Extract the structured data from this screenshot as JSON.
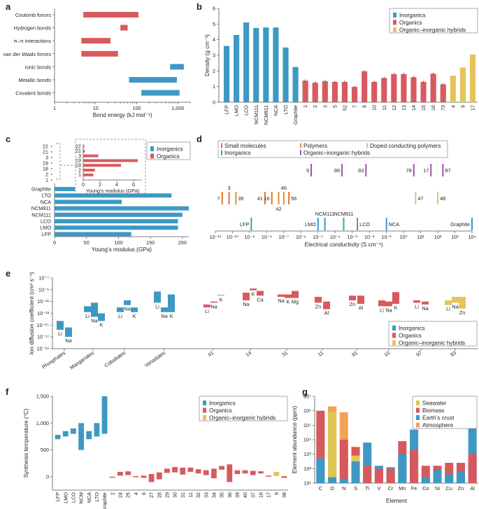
{
  "colors": {
    "inorganic": "#3d99c4",
    "organic": "#d85a5e",
    "hybrid": "#e6c45a",
    "small_molecule": "#e2732e",
    "polymer": "#e0922f",
    "doped": "#e1c27c",
    "hybrid_purple": "#a94fb3",
    "seawater": "#e0c653",
    "biomass": "#d6595d",
    "crust": "#3d99c4",
    "atmosphere": "#f2a15b"
  },
  "chart_data": [
    {
      "panel": "a",
      "type": "range-bar",
      "xlabel": "Bond energy (kJ mol⁻¹)",
      "xscale": "log",
      "xlim": [
        1,
        2000
      ],
      "xticks": [
        "1",
        "10",
        "100",
        "1,000"
      ],
      "bars": [
        {
          "label": "Coulomb forces",
          "lo": 5,
          "hi": 110,
          "group": "organic"
        },
        {
          "label": "Hydrogen bonds",
          "lo": 40,
          "hi": 60,
          "group": "organic"
        },
        {
          "label": "π–π interactions",
          "lo": 4.5,
          "hi": 23,
          "group": "organic"
        },
        {
          "label": "van der Waals forces",
          "lo": 4.5,
          "hi": 35,
          "group": "organic"
        },
        {
          "label": "Ionic bonds",
          "lo": 650,
          "hi": 1400,
          "group": "inorganic"
        },
        {
          "label": "Metallic bonds",
          "lo": 65,
          "hi": 950,
          "group": "inorganic"
        },
        {
          "label": "Covalent bonds",
          "lo": 130,
          "hi": 1100,
          "group": "inorganic"
        }
      ]
    },
    {
      "panel": "b",
      "type": "bar",
      "ylabel": "Density (g cm⁻³)",
      "ylim": [
        0,
        6
      ],
      "yticks": [
        "0",
        "1",
        "2",
        "3",
        "4",
        "5",
        "6"
      ],
      "legend": [
        "Inorganics",
        "Organics",
        "Organic–inorganic hybrids"
      ],
      "categories": [
        "LFP",
        "LMO",
        "LCO",
        "NCM111",
        "NCM811",
        "NCA",
        "LTO",
        "Graphite",
        "1",
        "2",
        "3",
        "5",
        "52",
        "7",
        "8",
        "10",
        "11",
        "12",
        "13",
        "14",
        "15",
        "16",
        "73",
        "4",
        "9",
        "17"
      ],
      "values": [
        3.6,
        4.3,
        5.1,
        4.75,
        4.78,
        4.78,
        3.5,
        2.25,
        1.38,
        1.25,
        1.35,
        1.3,
        1.3,
        0.98,
        1.98,
        1.3,
        1.55,
        1.8,
        1.8,
        1.6,
        1.3,
        1.82,
        1.15,
        1.7,
        2.22,
        3.05
      ],
      "groups": [
        "inorganic",
        "inorganic",
        "inorganic",
        "inorganic",
        "inorganic",
        "inorganic",
        "inorganic",
        "inorganic",
        "organic",
        "organic",
        "organic",
        "organic",
        "organic",
        "organic",
        "organic",
        "organic",
        "organic",
        "organic",
        "organic",
        "organic",
        "organic",
        "organic",
        "organic",
        "hybrid",
        "hybrid",
        "hybrid"
      ]
    },
    {
      "panel": "c",
      "type": "hbar",
      "xlabel": "Young’s modulus (GPa)",
      "xlim": [
        0,
        210
      ],
      "xticks": [
        "0",
        "50",
        "100",
        "150",
        "200"
      ],
      "legend": [
        "Inorganics",
        "Organics"
      ],
      "categories": [
        "Graphite",
        "LTO",
        "NCA",
        "NCM811",
        "NCM111",
        "LCO",
        "LMO",
        "LFP"
      ],
      "values": [
        32,
        183,
        105,
        210,
        200,
        193,
        193,
        120
      ],
      "inset": {
        "xlabel": "Young’s modulus (GPa)",
        "xlim": [
          0,
          7
        ],
        "xticks": [
          "0",
          "2",
          "4",
          "6"
        ],
        "categories": [
          "22",
          "21",
          "3",
          "19",
          "18",
          "2",
          "1"
        ],
        "values": [
          0.12,
          0.2,
          1.8,
          6.5,
          4.5,
          1.4,
          1.2
        ]
      },
      "outer_labels": [
        "22",
        "21",
        "3",
        "19",
        "18",
        "2",
        "1"
      ]
    },
    {
      "panel": "d",
      "type": "scatter-lines",
      "xlabel": "Electrical conductivity (S cm⁻¹)",
      "xscale": "log",
      "xlim": [
        -11,
        4
      ],
      "legend": [
        "Small molecules",
        "Polymers",
        "Doped conducting polymers",
        "Inorganics",
        "Organic–inorganic hybrids"
      ],
      "points": [
        {
          "label": "9",
          "log": -5.4,
          "row": 0,
          "group": "hybrid_purple",
          "side": "left"
        },
        {
          "label": "86",
          "log": -3.6,
          "row": 0,
          "group": "hybrid_purple",
          "side": "left"
        },
        {
          "label": "83",
          "log": -2.2,
          "row": 0,
          "group": "hybrid_purple",
          "side": "left"
        },
        {
          "label": "78",
          "log": 0.6,
          "row": 0,
          "group": "hybrid_purple",
          "side": "left"
        },
        {
          "label": "17",
          "log": 1.6,
          "row": 0,
          "group": "hybrid_purple",
          "side": "left"
        },
        {
          "label": "87",
          "log": 2.3,
          "row": 0,
          "group": "hybrid_purple",
          "side": "right"
        },
        {
          "label": "7",
          "log": -10.6,
          "row": 1,
          "group": "small_molecule",
          "side": "left"
        },
        {
          "label": "3",
          "log": -10.2,
          "row": 1,
          "group": "small_molecule",
          "side": "top"
        },
        {
          "label": "39",
          "log": -9.8,
          "row": 1,
          "group": "polymer",
          "side": "right"
        },
        {
          "label": "41",
          "log": -8.1,
          "row": 1,
          "group": "small_molecule",
          "side": "left"
        },
        {
          "label": "16",
          "log": -7.7,
          "row": 1,
          "group": "small_molecule",
          "side": "left"
        },
        {
          "label": "42",
          "log": -7.3,
          "row": 1,
          "group": "polymer",
          "side": "bottom"
        },
        {
          "label": "46",
          "log": -7.0,
          "row": 1,
          "group": "polymer",
          "side": "top"
        },
        {
          "label": "56",
          "log": -6.7,
          "row": 1,
          "group": "small_molecule",
          "side": "right"
        },
        {
          "label": "47",
          "log": 0.7,
          "row": 1,
          "group": "doped",
          "side": "right"
        },
        {
          "label": "48",
          "log": 2.0,
          "row": 1,
          "group": "doped",
          "side": "right"
        },
        {
          "label": "LFP",
          "log": -8.9,
          "row": 2,
          "group": "inorganic",
          "side": "left"
        },
        {
          "label": "LMO",
          "log": -5.0,
          "row": 2,
          "group": "inorganic",
          "side": "left"
        },
        {
          "label": "NCM111",
          "log": -4.6,
          "row": 2,
          "group": "inorganic",
          "side": "top"
        },
        {
          "label": "NCM811",
          "log": -3.5,
          "row": 2,
          "group": "inorganic",
          "side": "top"
        },
        {
          "label": "LCO",
          "log": -2.7,
          "row": 2,
          "group": "inorganic",
          "side": "right"
        },
        {
          "label": "NCA",
          "log": -1.0,
          "row": 2,
          "group": "inorganic",
          "side": "right"
        },
        {
          "label": "Graphite",
          "log": 4.0,
          "row": 2,
          "group": "inorganic",
          "side": "left"
        }
      ]
    },
    {
      "panel": "e",
      "type": "floating-bar",
      "ylabel": "Ion diffusion coefficient (cm² s⁻¹)",
      "ylim": [
        -19,
        -7
      ],
      "legend": [
        "Inorganics",
        "Organics",
        "Organic–inorganic hybrids"
      ],
      "xcats": [
        "Phosphates",
        "Manganates",
        "Cobaltates",
        "Vanadates",
        "41",
        "14",
        "31",
        "11",
        "81",
        "10",
        "97",
        "83"
      ],
      "bars": [
        {
          "cat": 0,
          "dx": -6,
          "lo": -15.8,
          "hi": -14.3,
          "label": "Li",
          "group": "inorganic"
        },
        {
          "cat": 0,
          "dx": 6,
          "lo": -17.0,
          "hi": -15.4,
          "label": "Na",
          "group": "inorganic"
        },
        {
          "cat": 1,
          "dx": -8,
          "lo": -12.8,
          "hi": -11.8,
          "label": "Li",
          "group": "inorganic"
        },
        {
          "cat": 1,
          "dx": 2,
          "lo": -13.6,
          "hi": -11.2,
          "label": "Na",
          "group": "inorganic"
        },
        {
          "cat": 1,
          "dx": 12,
          "lo": -14.3,
          "hi": -13.0,
          "label": "K",
          "group": "inorganic"
        },
        {
          "cat": 2,
          "dx": -6,
          "lo": -12.8,
          "hi": -12.0,
          "label": "Li",
          "group": "inorganic"
        },
        {
          "cat": 2,
          "dx": 4,
          "lo": -11.6,
          "hi": -10.8,
          "label": "Na",
          "group": "inorganic"
        },
        {
          "cat": 2,
          "dx": 14,
          "lo": -12.8,
          "hi": -12.0,
          "label": "K",
          "group": "inorganic"
        },
        {
          "cat": 3,
          "dx": -10,
          "lo": -11.2,
          "hi": -9.3,
          "label": "Li",
          "group": "inorganic"
        },
        {
          "cat": 3,
          "dx": 0,
          "lo": -12.8,
          "hi": -12.0,
          "label": "Na",
          "group": "inorganic"
        },
        {
          "cat": 3,
          "dx": 10,
          "lo": -12.8,
          "hi": -9.8,
          "label": "K",
          "group": "inorganic"
        },
        {
          "cat": 4,
          "dx": -8,
          "lo": -12.0,
          "hi": -11.5,
          "label": "Li",
          "group": "organic"
        },
        {
          "cat": 4,
          "dx": 2,
          "lo": -11.2,
          "hi": -11.0,
          "label": "Na",
          "group": "organic"
        },
        {
          "cat": 4,
          "dx": 12,
          "lo": -10.0,
          "hi": -9.9,
          "label": "K",
          "group": "organic"
        },
        {
          "cat": 5,
          "dx": -6,
          "lo": -10.8,
          "hi": -9.5,
          "label": "Na",
          "group": "organic"
        },
        {
          "cat": 5,
          "dx": 4,
          "lo": -9.1,
          "hi": -8.8,
          "label": "K",
          "group": "organic"
        },
        {
          "cat": 5,
          "dx": 14,
          "lo": -10.0,
          "hi": -9.2,
          "label": "Ca",
          "group": "organic"
        },
        {
          "cat": 6,
          "dx": -8,
          "lo": -10.2,
          "hi": -9.8,
          "label": "Na",
          "group": "organic"
        },
        {
          "cat": 6,
          "dx": 2,
          "lo": -10.4,
          "hi": -9.8,
          "label": "K",
          "group": "organic"
        },
        {
          "cat": 6,
          "dx": 12,
          "lo": -10.4,
          "hi": -9.2,
          "label": "Mg",
          "group": "organic"
        },
        {
          "cat": 7,
          "dx": -6,
          "lo": -11.2,
          "hi": -10.2,
          "label": "Zn",
          "group": "organic"
        },
        {
          "cat": 7,
          "dx": 6,
          "lo": -12.3,
          "hi": -11.0,
          "label": "Al",
          "group": "organic"
        },
        {
          "cat": 8,
          "dx": -6,
          "lo": -10.8,
          "hi": -10.0,
          "label": "Zn",
          "group": "organic"
        },
        {
          "cat": 8,
          "dx": 6,
          "lo": -11.4,
          "hi": -10.0,
          "label": "Al",
          "group": "organic"
        },
        {
          "cat": 9,
          "dx": -10,
          "lo": -11.8,
          "hi": -10.8,
          "label": "Li",
          "group": "organic"
        },
        {
          "cat": 9,
          "dx": 0,
          "lo": -11.8,
          "hi": -11.0,
          "label": "Na",
          "group": "organic"
        },
        {
          "cat": 9,
          "dx": 10,
          "lo": -11.4,
          "hi": -9.4,
          "label": "K",
          "group": "organic"
        },
        {
          "cat": 10,
          "dx": -6,
          "lo": -11.2,
          "hi": -10.8,
          "label": "Li",
          "group": "organic"
        },
        {
          "cat": 10,
          "dx": 6,
          "lo": -11.5,
          "hi": -11.0,
          "label": "Na",
          "group": "organic"
        },
        {
          "cat": 11,
          "dx": -10,
          "lo": -11.6,
          "hi": -10.8,
          "label": "Li",
          "group": "hybrid"
        },
        {
          "cat": 11,
          "dx": 0,
          "lo": -11.2,
          "hi": -10.2,
          "label": "Na",
          "group": "hybrid"
        },
        {
          "cat": 11,
          "dx": 10,
          "lo": -12.2,
          "hi": -10.2,
          "label": "Zn",
          "group": "hybrid"
        }
      ]
    },
    {
      "panel": "f",
      "type": "floating-bar",
      "ylabel": "Synthesis temperature (°C)",
      "ylim": [
        -250,
        1500
      ],
      "yticks": [
        "0",
        "500",
        "1,000",
        "1,500"
      ],
      "legend": [
        "Inorganics",
        "Organics",
        "Organic–inorganic hybrids"
      ],
      "categories": [
        "LFP",
        "LMO",
        "LCO",
        "NCM",
        "NCA",
        "LTO",
        "Graphite",
        "2",
        "24",
        "25",
        "4",
        "6",
        "27",
        "28",
        "29",
        "30",
        "31",
        "11",
        "32",
        "33",
        "34",
        "35",
        "36",
        "39",
        "40",
        "37",
        "16",
        "17",
        "9",
        "38"
      ],
      "lo": [
        700,
        750,
        800,
        500,
        700,
        750,
        800,
        -20,
        20,
        30,
        -10,
        -20,
        -100,
        -50,
        70,
        80,
        40,
        90,
        60,
        30,
        -30,
        130,
        -100,
        50,
        60,
        30,
        60,
        0,
        10,
        -20
      ],
      "hi": [
        780,
        850,
        900,
        1000,
        850,
        1000,
        1500,
        0,
        90,
        100,
        10,
        20,
        50,
        80,
        150,
        180,
        170,
        170,
        140,
        120,
        150,
        200,
        230,
        120,
        120,
        110,
        100,
        20,
        90,
        10
      ],
      "groups": [
        "inorganic",
        "inorganic",
        "inorganic",
        "inorganic",
        "inorganic",
        "inorganic",
        "inorganic",
        "organic",
        "organic",
        "organic",
        "organic",
        "organic",
        "organic",
        "organic",
        "organic",
        "organic",
        "organic",
        "organic",
        "organic",
        "organic",
        "organic",
        "organic",
        "organic",
        "organic",
        "organic",
        "organic",
        "organic",
        "organic",
        "hybrid",
        "organic"
      ]
    },
    {
      "panel": "g",
      "type": "stacked-bar",
      "xlabel": "Element",
      "ylabel": "Element abundance (ppm)",
      "yscale": "log",
      "ylim": [
        1,
        7
      ],
      "legend": [
        "Seawater",
        "Biomass",
        "Earth’s crust",
        "Atmosphere"
      ],
      "categories": [
        "C",
        "O",
        "N",
        "S",
        "Ti",
        "V",
        "Cr",
        "Mn",
        "Fe",
        "Co",
        "Ni",
        "Cu",
        "Zn",
        "Al"
      ],
      "series": [
        {
          "name": "Earth’s crust",
          "values": [
            2.7,
            1.4,
            1.3,
            2.5,
            3.8,
            2.2,
            2.1,
            3.0,
            4.7,
            1.4,
            1.9,
            1.6,
            1.8,
            4.9
          ]
        },
        {
          "name": "Biomass",
          "values": [
            6.0,
            6.3,
            4.0,
            3.5,
            2.2,
            2.0,
            2.0,
            3.9,
            3.3,
            2.2,
            2.2,
            2.4,
            2.4,
            3.0
          ]
        },
        {
          "name": "Seawater",
          "values": [
            1.0,
            5.9,
            1.0,
            2.9,
            1.0,
            1.0,
            1.0,
            1.0,
            1.0,
            1.0,
            1.0,
            1.0,
            1.0,
            1.0
          ]
        },
        {
          "name": "Atmosphere",
          "values": [
            1.0,
            6.3,
            5.9,
            1.0,
            1.0,
            1.0,
            1.0,
            1.0,
            1.0,
            1.0,
            1.0,
            1.0,
            1.0,
            1.0
          ]
        }
      ]
    }
  ],
  "labels": {
    "a": "a",
    "b": "b",
    "c": "c",
    "d": "d",
    "e": "e",
    "f": "f",
    "g": "g"
  },
  "e_ticks": [
    "10⁻⁷",
    "10⁻⁹",
    "10⁻¹¹",
    "10⁻¹³",
    "10⁻¹⁵",
    "10⁻¹⁷",
    "10⁻¹⁹"
  ],
  "g_ticks": [
    "10⁷",
    "10⁶",
    "10⁵",
    "10⁴",
    "10³",
    "10²",
    "10¹"
  ],
  "d_ticks": [
    "10⁻¹¹",
    "10⁻¹⁰",
    "10⁻⁹",
    "10⁻⁸",
    "10⁻⁷",
    "10⁻⁶",
    "10⁻⁵",
    "10⁻⁴",
    "10⁻³",
    "10⁻²",
    "10⁻¹",
    "10⁰",
    "10¹",
    "10²",
    "10³",
    "10⁴"
  ]
}
